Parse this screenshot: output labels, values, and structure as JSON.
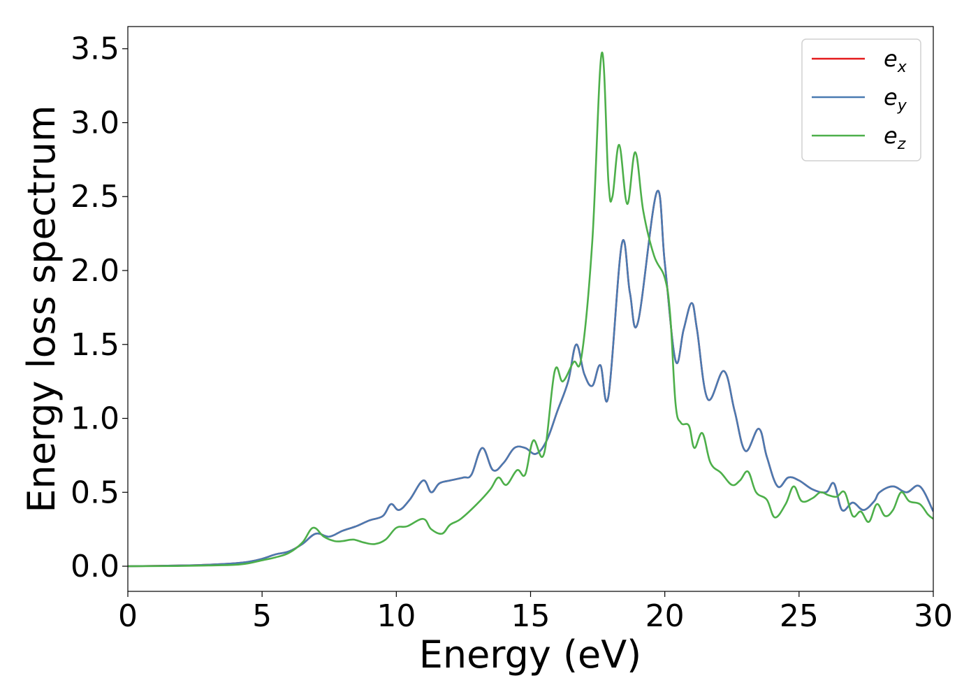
{
  "chart_data": {
    "type": "line",
    "title": "",
    "xlabel": "Energy (eV)",
    "ylabel": "Energy loss spectrum",
    "xlim": [
      0,
      30
    ],
    "ylim": [
      -0.17,
      3.65
    ],
    "xticks": [
      0,
      5,
      10,
      15,
      20,
      25,
      30
    ],
    "xtick_labels": [
      "0",
      "5",
      "10",
      "15",
      "20",
      "25",
      "30"
    ],
    "yticks": [
      0.0,
      0.5,
      1.0,
      1.5,
      2.0,
      2.5,
      3.0,
      3.5
    ],
    "ytick_labels": [
      "0.0",
      "0.5",
      "1.0",
      "1.5",
      "2.0",
      "2.5",
      "3.0",
      "3.5"
    ],
    "grid": false,
    "legend_position": "top-right",
    "series": [
      {
        "name": "e_x",
        "legend_base": "e",
        "legend_sub": "x",
        "color": "#e41a1c",
        "x": [
          0,
          2,
          3,
          4,
          4.5,
          5,
          5.5,
          6,
          6.5,
          7,
          7.5,
          8,
          8.5,
          9,
          9.5,
          9.8,
          10.1,
          10.5,
          11,
          11.3,
          11.6,
          12,
          12.5,
          12.8,
          13.2,
          13.6,
          14,
          14.4,
          14.8,
          15.2,
          15.6,
          16,
          16.4,
          16.7,
          17,
          17.3,
          17.6,
          17.9,
          18.4,
          18.7,
          19,
          19.7,
          20,
          20.4,
          20.7,
          21,
          21.2,
          21.6,
          22.2,
          22.6,
          23,
          23.5,
          23.8,
          24.2,
          24.6,
          25,
          25.5,
          26,
          26.3,
          26.6,
          27,
          27.4,
          27.8,
          28,
          28.5,
          29,
          29.5,
          30
        ],
        "values": [
          0.0,
          0.005,
          0.01,
          0.02,
          0.03,
          0.05,
          0.08,
          0.1,
          0.15,
          0.22,
          0.2,
          0.24,
          0.27,
          0.31,
          0.34,
          0.42,
          0.38,
          0.45,
          0.58,
          0.5,
          0.56,
          0.58,
          0.6,
          0.62,
          0.8,
          0.65,
          0.7,
          0.8,
          0.8,
          0.76,
          0.85,
          1.05,
          1.25,
          1.5,
          1.3,
          1.22,
          1.36,
          1.15,
          2.18,
          1.85,
          1.65,
          2.53,
          2.05,
          1.39,
          1.6,
          1.78,
          1.6,
          1.13,
          1.32,
          1.05,
          0.78,
          0.93,
          0.74,
          0.54,
          0.6,
          0.58,
          0.52,
          0.5,
          0.56,
          0.38,
          0.43,
          0.38,
          0.44,
          0.5,
          0.54,
          0.5,
          0.54,
          0.37
        ]
      },
      {
        "name": "e_y",
        "legend_base": "e",
        "legend_sub": "y",
        "color": "#4a7ab1",
        "x": [
          0,
          2,
          3,
          4,
          4.5,
          5,
          5.5,
          6,
          6.5,
          7,
          7.5,
          8,
          8.5,
          9,
          9.5,
          9.8,
          10.1,
          10.5,
          11,
          11.3,
          11.6,
          12,
          12.5,
          12.8,
          13.2,
          13.6,
          14,
          14.4,
          14.8,
          15.2,
          15.6,
          16,
          16.4,
          16.7,
          17,
          17.3,
          17.6,
          17.9,
          18.4,
          18.7,
          19,
          19.7,
          20,
          20.4,
          20.7,
          21,
          21.2,
          21.6,
          22.2,
          22.6,
          23,
          23.5,
          23.8,
          24.2,
          24.6,
          25,
          25.5,
          26,
          26.3,
          26.6,
          27,
          27.4,
          27.8,
          28,
          28.5,
          29,
          29.5,
          30
        ],
        "values": [
          0.0,
          0.005,
          0.01,
          0.02,
          0.03,
          0.05,
          0.08,
          0.1,
          0.15,
          0.22,
          0.2,
          0.24,
          0.27,
          0.31,
          0.34,
          0.42,
          0.38,
          0.45,
          0.58,
          0.5,
          0.56,
          0.58,
          0.6,
          0.62,
          0.8,
          0.65,
          0.7,
          0.8,
          0.8,
          0.76,
          0.85,
          1.05,
          1.25,
          1.5,
          1.3,
          1.22,
          1.36,
          1.15,
          2.18,
          1.85,
          1.65,
          2.53,
          2.05,
          1.39,
          1.6,
          1.78,
          1.6,
          1.13,
          1.32,
          1.05,
          0.78,
          0.93,
          0.74,
          0.54,
          0.6,
          0.58,
          0.52,
          0.5,
          0.56,
          0.38,
          0.43,
          0.38,
          0.44,
          0.5,
          0.54,
          0.5,
          0.54,
          0.37
        ]
      },
      {
        "name": "e_z",
        "legend_base": "e",
        "legend_sub": "z",
        "color": "#4daf4a",
        "x": [
          0,
          2,
          3,
          4,
          4.5,
          5,
          5.5,
          6,
          6.5,
          6.9,
          7.3,
          7.7,
          8,
          8.4,
          8.8,
          9.2,
          9.6,
          10,
          10.4,
          11,
          11.3,
          11.7,
          12,
          12.4,
          13,
          13.5,
          13.8,
          14.1,
          14.5,
          14.8,
          15.1,
          15.5,
          15.9,
          16.2,
          16.6,
          16.9,
          17.3,
          17.65,
          17.9,
          18.05,
          18.3,
          18.6,
          18.9,
          19.2,
          19.6,
          20,
          20.2,
          20.4,
          20.6,
          20.9,
          21.1,
          21.4,
          21.7,
          22.1,
          22.5,
          22.8,
          23.1,
          23.4,
          23.8,
          24.1,
          24.5,
          24.8,
          25.1,
          25.5,
          25.8,
          26.1,
          26.4,
          26.7,
          27.0,
          27.3,
          27.6,
          27.9,
          28.2,
          28.5,
          28.8,
          29.1,
          29.5,
          29.8,
          30
        ],
        "values": [
          0.0,
          0.002,
          0.005,
          0.01,
          0.02,
          0.04,
          0.06,
          0.09,
          0.16,
          0.26,
          0.2,
          0.17,
          0.17,
          0.18,
          0.16,
          0.15,
          0.18,
          0.26,
          0.27,
          0.32,
          0.25,
          0.22,
          0.28,
          0.32,
          0.42,
          0.52,
          0.6,
          0.55,
          0.65,
          0.62,
          0.85,
          0.76,
          1.32,
          1.25,
          1.38,
          1.42,
          2.2,
          3.47,
          2.6,
          2.5,
          2.85,
          2.45,
          2.8,
          2.4,
          2.1,
          1.95,
          1.7,
          1.1,
          0.97,
          0.95,
          0.8,
          0.9,
          0.7,
          0.63,
          0.55,
          0.58,
          0.64,
          0.5,
          0.45,
          0.33,
          0.42,
          0.54,
          0.44,
          0.46,
          0.5,
          0.48,
          0.47,
          0.5,
          0.34,
          0.37,
          0.3,
          0.42,
          0.34,
          0.38,
          0.5,
          0.44,
          0.42,
          0.35,
          0.32
        ]
      }
    ]
  }
}
